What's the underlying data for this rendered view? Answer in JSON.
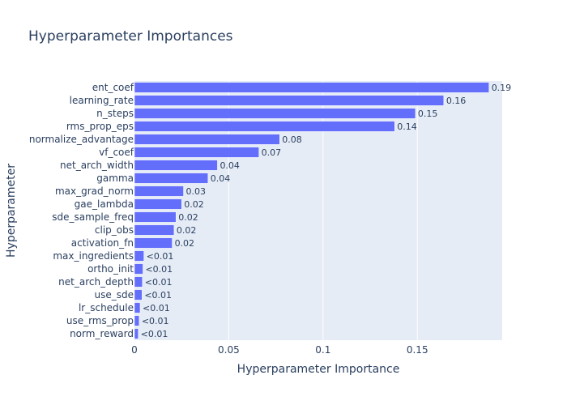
{
  "chart_data": {
    "type": "bar",
    "orientation": "horizontal",
    "title": "Hyperparameter Importances",
    "xlabel": "Hyperparameter Importance",
    "ylabel": "Hyperparameter",
    "xlim": [
      0,
      0.195
    ],
    "xticks": [
      0,
      0.05,
      0.1,
      0.15
    ],
    "xtick_labels": [
      "0",
      "0.05",
      "0.1",
      "0.15"
    ],
    "grid": true,
    "bar_color": "#636efa",
    "plot_bg": "#e5ecf6",
    "categories": [
      "ent_coef",
      "learning_rate",
      "n_steps",
      "rms_prop_eps",
      "normalize_advantage",
      "vf_coef",
      "net_arch_width",
      "gamma",
      "max_grad_norm",
      "gae_lambda",
      "sde_sample_freq",
      "clip_obs",
      "activation_fn",
      "max_ingredients",
      "ortho_init",
      "net_arch_depth",
      "use_sde",
      "lr_schedule",
      "use_rms_prop",
      "norm_reward"
    ],
    "values": [
      0.188,
      0.164,
      0.149,
      0.138,
      0.077,
      0.066,
      0.044,
      0.039,
      0.026,
      0.025,
      0.022,
      0.021,
      0.02,
      0.005,
      0.0045,
      0.0042,
      0.004,
      0.003,
      0.0025,
      0.002
    ],
    "labels": [
      "0.19",
      "0.16",
      "0.15",
      "0.14",
      "0.08",
      "0.07",
      "0.04",
      "0.04",
      "0.03",
      "0.02",
      "0.02",
      "0.02",
      "0.02",
      "<0.01",
      "<0.01",
      "<0.01",
      "<0.01",
      "<0.01",
      "<0.01",
      "<0.01"
    ]
  }
}
